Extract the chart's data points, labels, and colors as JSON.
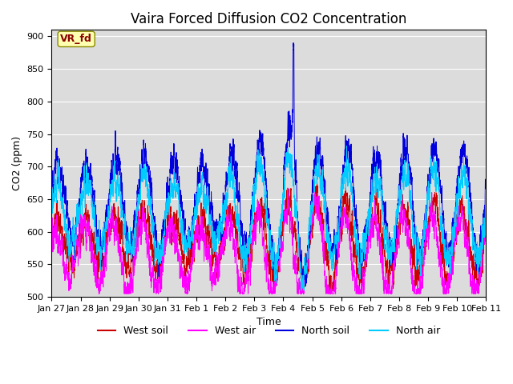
{
  "title": "Vaira Forced Diffusion CO2 Concentration",
  "xlabel": "Time",
  "ylabel": "CO2 (ppm)",
  "ylim": [
    500,
    910
  ],
  "yticks": [
    500,
    550,
    600,
    650,
    700,
    750,
    800,
    850,
    900
  ],
  "legend_labels": [
    "West soil",
    "West air",
    "North soil",
    "North air"
  ],
  "line_colors": [
    "#cc0000",
    "#ff00ff",
    "#0000dd",
    "#00ccff"
  ],
  "xtick_labels": [
    "Jan 27",
    "Jan 28",
    "Jan 29",
    "Jan 30",
    "Jan 31",
    "Feb 1",
    "Feb 2",
    "Feb 3",
    "Feb 4",
    "Feb 5",
    "Feb 6",
    "Feb 7",
    "Feb 8",
    "Feb 9",
    "Feb 10",
    "Feb 11"
  ],
  "annotation_text": "VR_fd",
  "bg_color": "#dcdcdc",
  "title_fontsize": 12,
  "axis_label_fontsize": 9,
  "tick_fontsize": 8,
  "legend_fontsize": 9,
  "n_points": 7200,
  "duration_days": 15,
  "seed": 123
}
